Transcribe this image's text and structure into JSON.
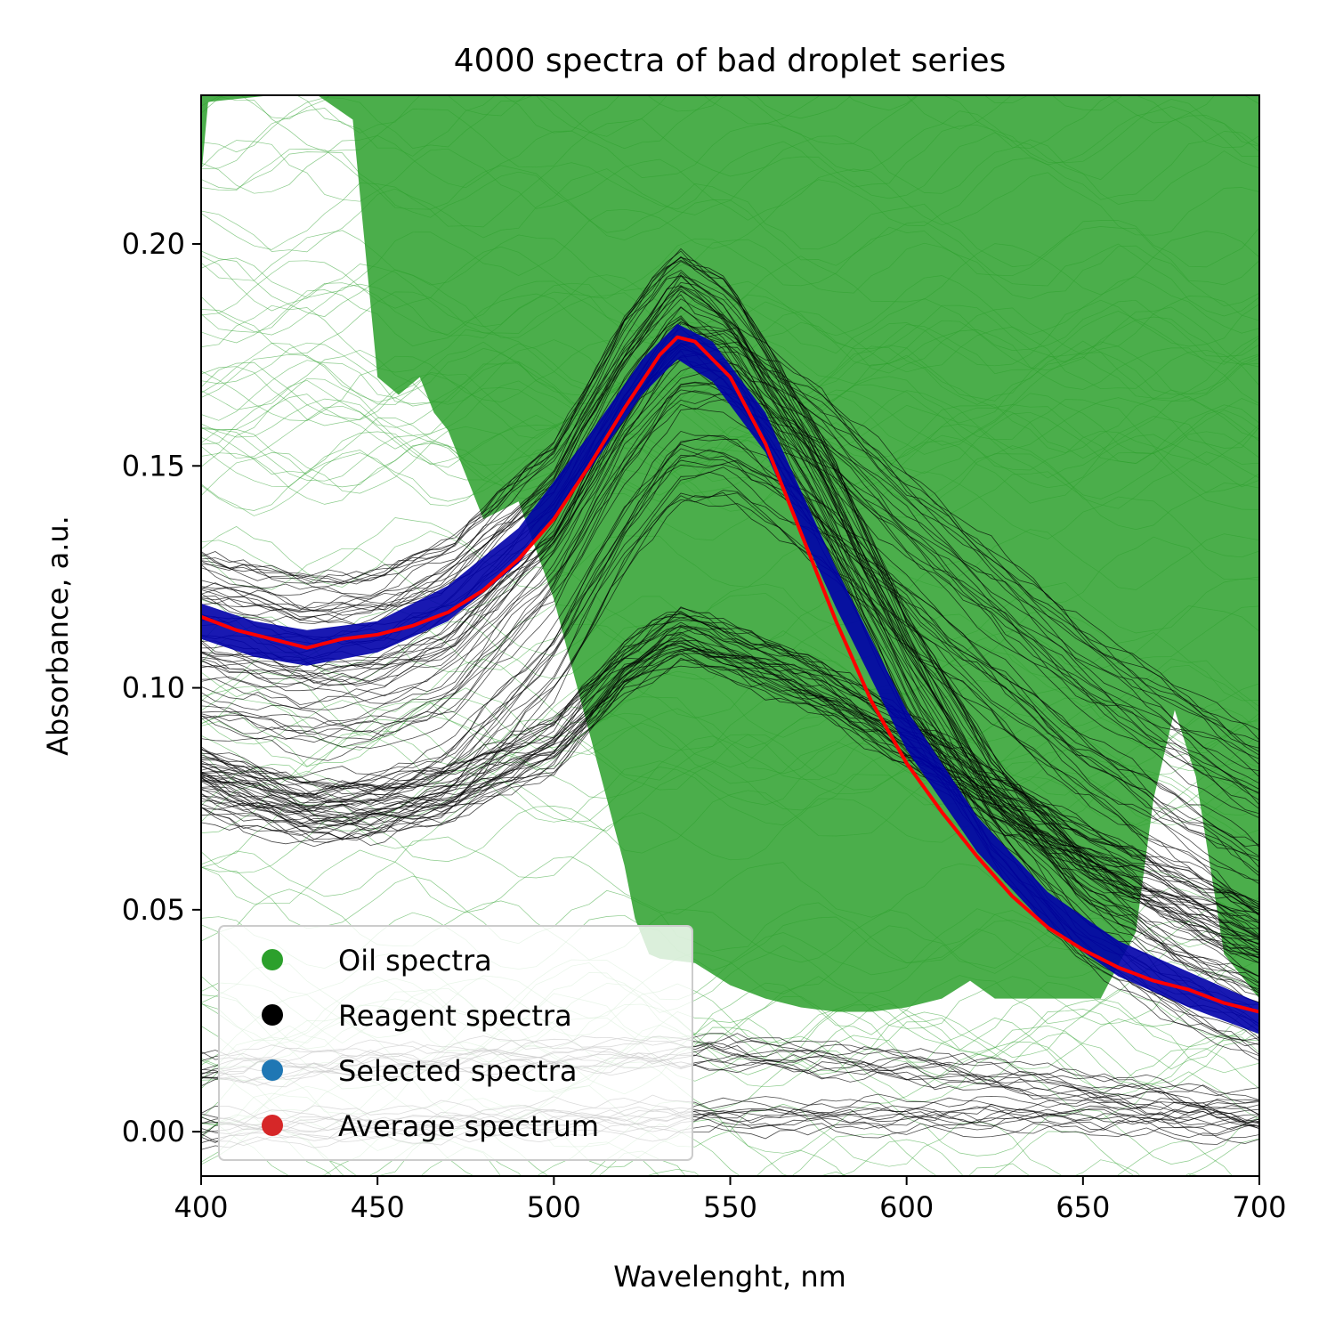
{
  "chart_data": {
    "type": "line",
    "title": "4000 spectra of bad droplet series",
    "xlabel": "Wavelenght, nm",
    "ylabel": "Absorbance, a.u.",
    "xlim": [
      400,
      700
    ],
    "ylim": [
      -0.01,
      0.2335
    ],
    "xticks": [
      400,
      450,
      500,
      550,
      600,
      650,
      700
    ],
    "xtick_labels": [
      "400",
      "450",
      "500",
      "550",
      "600",
      "650",
      "700"
    ],
    "yticks": [
      0.0,
      0.05,
      0.1,
      0.15,
      0.2
    ],
    "ytick_labels": [
      "0.00",
      "0.05",
      "0.10",
      "0.15",
      "0.20"
    ],
    "grid": false,
    "legend_position": "lower-left",
    "legend": [
      {
        "label": "Oil spectra",
        "color": "#2ca02c"
      },
      {
        "label": "Reagent spectra",
        "color": "#000000"
      },
      {
        "label": "Selected spectra",
        "color": "#1f77b4"
      },
      {
        "label": "Average spectrum",
        "color": "#d62728"
      }
    ],
    "colors": {
      "oil": "#2ca02c",
      "reagent": "#000000",
      "selected": "#0000aa",
      "average": "#ff0000"
    },
    "series": [
      {
        "name": "Oil spectra",
        "role": "oil",
        "band": {
          "x": [
            400,
            402,
            420,
            433,
            443,
            450,
            456,
            462,
            466,
            470,
            475,
            480,
            485,
            490,
            500,
            505,
            510,
            520,
            523,
            527,
            530,
            540,
            550,
            560,
            570,
            580,
            590,
            600,
            610,
            618,
            625,
            640,
            655,
            665,
            670,
            676,
            682,
            690,
            700
          ],
          "upper": [
            0.2335,
            0.2335,
            0.2335,
            0.2335,
            0.2335,
            0.2335,
            0.2335,
            0.2335,
            0.2335,
            0.2335,
            0.2335,
            0.2335,
            0.2335,
            0.2335,
            0.2335,
            0.2335,
            0.2335,
            0.2335,
            0.2335,
            0.2335,
            0.2335,
            0.2335,
            0.2335,
            0.2335,
            0.2335,
            0.2335,
            0.2335,
            0.2335,
            0.2335,
            0.2335,
            0.2335,
            0.2335,
            0.2335,
            0.2335,
            0.2335,
            0.2335,
            0.2335,
            0.2335,
            0.2335
          ],
          "lower": [
            0.215,
            0.232,
            0.2335,
            0.2335,
            0.228,
            0.17,
            0.166,
            0.17,
            0.162,
            0.158,
            0.148,
            0.138,
            0.14,
            0.142,
            0.12,
            0.105,
            0.09,
            0.06,
            0.048,
            0.04,
            0.039,
            0.038,
            0.033,
            0.03,
            0.028,
            0.027,
            0.027,
            0.028,
            0.03,
            0.034,
            0.03,
            0.03,
            0.03,
            0.045,
            0.075,
            0.095,
            0.08,
            0.04,
            0.03
          ]
        }
      },
      {
        "name": "Reagent spectra",
        "role": "reagent",
        "clusters": [
          {
            "x": [
              400,
              430,
              450,
              470,
              500,
              520,
              535,
              550,
              575,
              600,
              625,
              650,
              675,
              700
            ],
            "y": [
              0.118,
              0.113,
              0.114,
              0.121,
              0.143,
              0.171,
              0.187,
              0.179,
              0.146,
              0.105,
              0.072,
              0.05,
              0.037,
              0.028
            ],
            "spread": 0.012
          },
          {
            "x": [
              400,
              430,
              450,
              470,
              500,
              520,
              535,
              550,
              575,
              600,
              625,
              650,
              675,
              700
            ],
            "y": [
              0.09,
              0.085,
              0.086,
              0.092,
              0.118,
              0.146,
              0.162,
              0.162,
              0.148,
              0.129,
              0.112,
              0.095,
              0.082,
              0.07
            ],
            "spread": 0.02
          },
          {
            "x": [
              400,
              430,
              450,
              470,
              500,
              520,
              535,
              550,
              575,
              600,
              625,
              650,
              675,
              700
            ],
            "y": [
              0.08,
              0.072,
              0.073,
              0.076,
              0.087,
              0.104,
              0.112,
              0.108,
              0.1,
              0.088,
              0.075,
              0.063,
              0.054,
              0.045
            ],
            "spread": 0.006
          },
          {
            "x": [
              400,
              450,
              500,
              550,
              600,
              650,
              700
            ],
            "y": [
              0.014,
              0.016,
              0.017,
              0.018,
              0.015,
              0.01,
              0.005
            ],
            "spread": 0.004
          },
          {
            "x": [
              400,
              450,
              500,
              550,
              600,
              650,
              700
            ],
            "y": [
              0.0,
              0.001,
              0.002,
              0.003,
              0.003,
              0.003,
              0.001
            ],
            "spread": 0.004
          }
        ]
      },
      {
        "name": "Selected spectra",
        "role": "selected",
        "band": {
          "x": [
            400,
            415,
            430,
            450,
            470,
            490,
            510,
            525,
            535,
            545,
            560,
            580,
            600,
            620,
            640,
            660,
            680,
            700
          ],
          "upper": [
            0.119,
            0.115,
            0.113,
            0.115,
            0.123,
            0.136,
            0.157,
            0.174,
            0.182,
            0.178,
            0.162,
            0.127,
            0.095,
            0.071,
            0.054,
            0.043,
            0.036,
            0.029
          ],
          "lower": [
            0.111,
            0.107,
            0.105,
            0.108,
            0.115,
            0.128,
            0.149,
            0.166,
            0.174,
            0.169,
            0.153,
            0.118,
            0.086,
            0.063,
            0.046,
            0.035,
            0.028,
            0.022
          ]
        }
      },
      {
        "name": "Average spectrum",
        "role": "average",
        "x": [
          400,
          410,
          420,
          430,
          440,
          450,
          460,
          470,
          480,
          490,
          500,
          510,
          520,
          530,
          535,
          540,
          550,
          560,
          570,
          580,
          590,
          600,
          610,
          620,
          630,
          640,
          650,
          660,
          670,
          680,
          690,
          700
        ],
        "y": [
          0.116,
          0.113,
          0.111,
          0.109,
          0.111,
          0.112,
          0.114,
          0.117,
          0.122,
          0.129,
          0.138,
          0.15,
          0.163,
          0.175,
          0.179,
          0.178,
          0.17,
          0.155,
          0.135,
          0.115,
          0.097,
          0.083,
          0.072,
          0.062,
          0.053,
          0.046,
          0.041,
          0.037,
          0.034,
          0.032,
          0.029,
          0.027
        ]
      }
    ]
  }
}
